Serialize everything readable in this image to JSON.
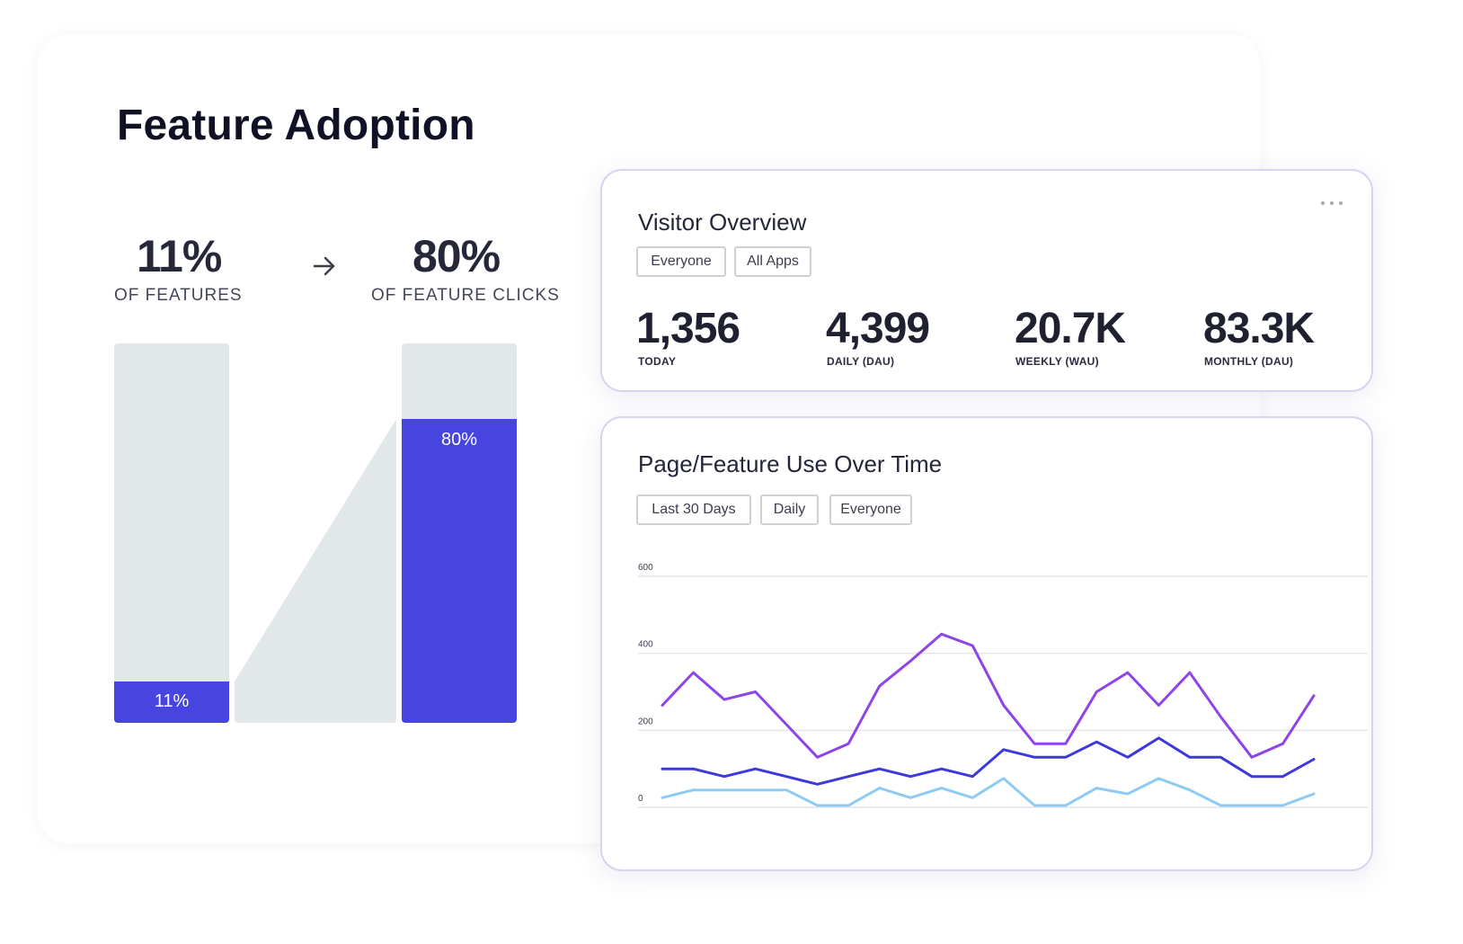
{
  "feature_adoption": {
    "title": "Feature Adoption",
    "left_stat": {
      "value": "11%",
      "label": "OF FEATURES"
    },
    "right_stat": {
      "value": "80%",
      "label": "OF FEATURE CLICKS"
    },
    "arrow_icon": "arrow-right-icon",
    "bars": [
      {
        "label": "11%",
        "fraction": 0.11
      },
      {
        "label": "80%",
        "fraction": 0.8
      }
    ],
    "colors": {
      "fill": "#4645e0",
      "track": "#e2e7ea"
    }
  },
  "visitor_overview": {
    "title": "Visitor Overview",
    "filters": [
      "Everyone",
      "All Apps"
    ],
    "more_icon": "more-horizontal-icon",
    "metrics": [
      {
        "value": "1,356",
        "label": "TODAY"
      },
      {
        "value": "4,399",
        "label": "DAILY (DAU)"
      },
      {
        "value": "20.7K",
        "label": "WEEKLY (WAU)"
      },
      {
        "value": "83.3K",
        "label": "MONTHLY (DAU)"
      }
    ]
  },
  "page_feature_use": {
    "title": "Page/Feature Use Over Time",
    "filters": [
      "Last 30 Days",
      "Daily",
      "Everyone"
    ],
    "chart_data": {
      "type": "line",
      "ylim": [
        0,
        600
      ],
      "y_ticks": [
        "600",
        "400",
        "200",
        "0"
      ],
      "y_tick_values": [
        600,
        400,
        200,
        0
      ],
      "grid": true,
      "x": [
        1,
        2,
        3,
        4,
        5,
        6,
        7,
        8,
        9,
        10,
        11,
        12,
        13,
        14,
        15,
        16,
        17,
        18,
        19,
        20,
        21,
        22,
        23
      ],
      "series": [
        {
          "color": "#8e44e6",
          "values": [
            265,
            350,
            280,
            300,
            215,
            130,
            165,
            315,
            380,
            450,
            420,
            265,
            165,
            165,
            300,
            350,
            265,
            350,
            235,
            130,
            165,
            290,
            null
          ]
        },
        {
          "color": "#3d3ad9",
          "values": [
            100,
            100,
            80,
            100,
            80,
            60,
            80,
            100,
            80,
            100,
            80,
            150,
            130,
            130,
            170,
            130,
            180,
            130,
            130,
            80,
            80,
            125,
            null
          ]
        },
        {
          "color": "#8ecbf2",
          "values": [
            25,
            45,
            45,
            45,
            45,
            5,
            5,
            50,
            25,
            50,
            25,
            75,
            5,
            5,
            50,
            35,
            75,
            45,
            5,
            5,
            5,
            35,
            null
          ]
        }
      ]
    }
  }
}
